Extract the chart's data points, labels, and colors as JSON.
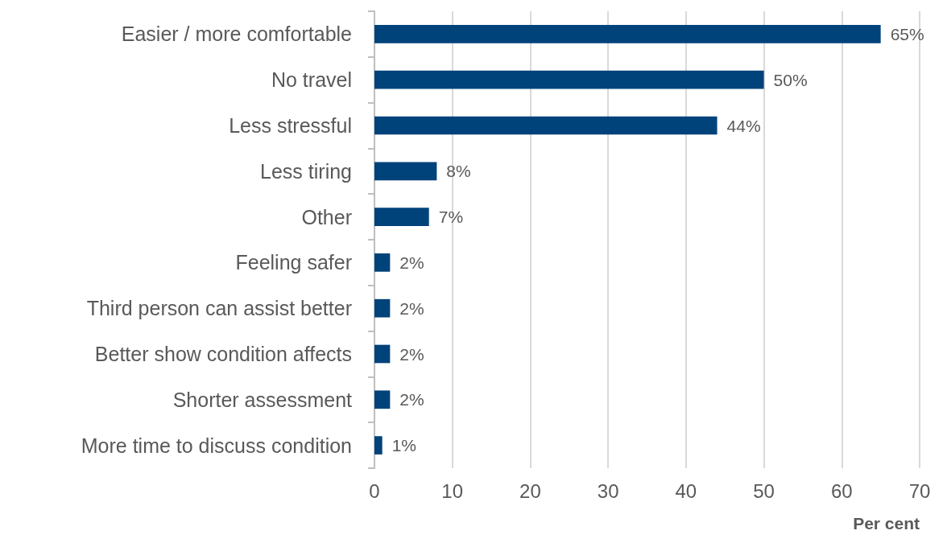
{
  "chart_data": {
    "type": "bar",
    "orientation": "horizontal",
    "xlabel": "Per cent",
    "categories": [
      "Easier / more comfortable",
      "No travel",
      "Less stressful",
      "Less tiring",
      "Other",
      "Feeling safer",
      "Third person can assist better",
      "Better show condition affects",
      "Shorter assessment",
      "More time to discuss condition"
    ],
    "values": [
      65,
      50,
      44,
      8,
      7,
      2,
      2,
      2,
      2,
      1
    ],
    "value_labels": [
      "65%",
      "50%",
      "44%",
      "8%",
      "7%",
      "2%",
      "2%",
      "2%",
      "2%",
      "1%"
    ],
    "color": "#00427a",
    "xlim": [
      0,
      70
    ],
    "xticks": [
      0,
      10,
      20,
      30,
      40,
      50,
      60,
      70
    ],
    "grid": "x"
  }
}
